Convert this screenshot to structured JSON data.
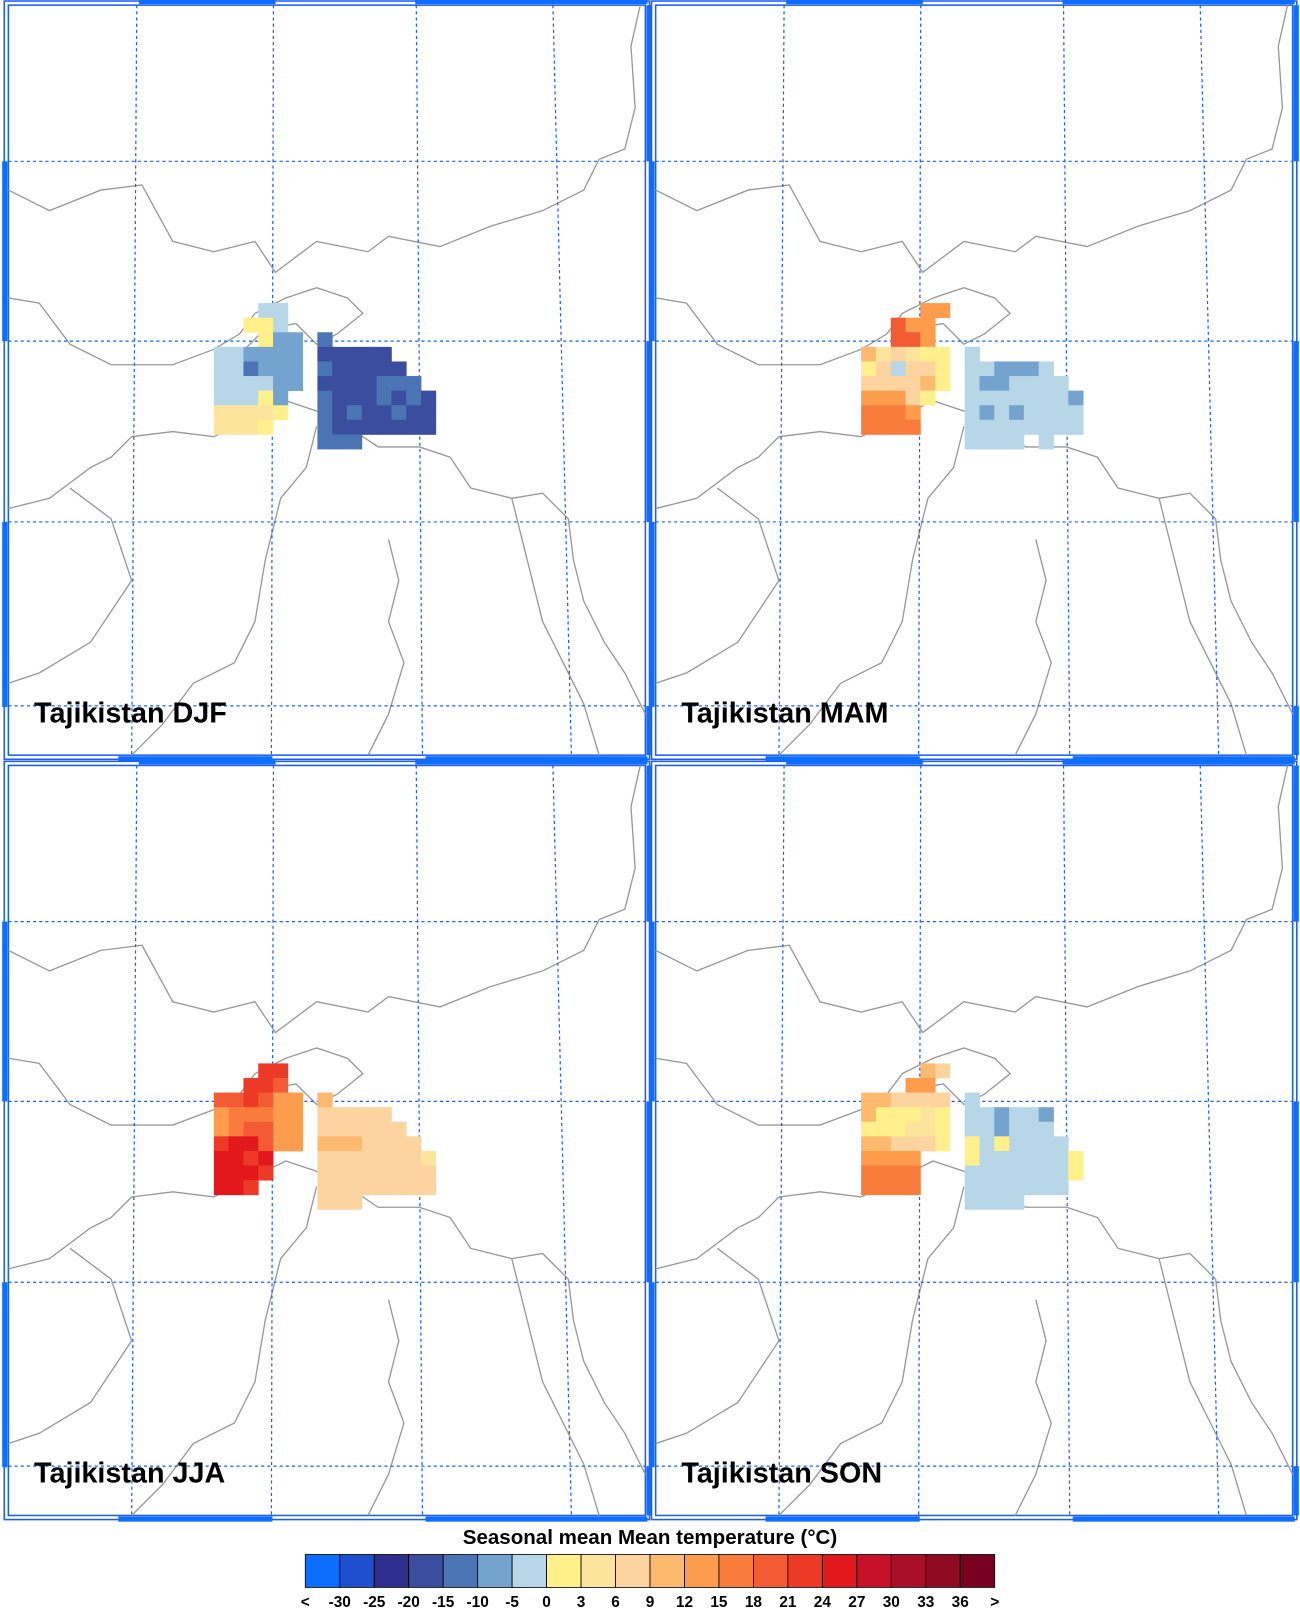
{
  "panels": [
    {
      "title": "Tajikistan DJF",
      "cells": [
        [
          null,
          null,
          null,
          -2.5,
          -2.5,
          null,
          null,
          null,
          null,
          null,
          null,
          null,
          null,
          null,
          null
        ],
        [
          null,
          null,
          1.5,
          1.5,
          -2.5,
          null,
          null,
          null,
          null,
          null,
          null,
          null,
          null,
          null,
          null
        ],
        [
          null,
          null,
          null,
          1.5,
          -7.5,
          -7.5,
          null,
          -12.5,
          null,
          null,
          null,
          null,
          null,
          null,
          null
        ],
        [
          -2.5,
          -2.5,
          -7.5,
          -7.5,
          -7.5,
          -7.5,
          null,
          -17.5,
          -17.5,
          -17.5,
          -17.5,
          -17.5,
          null,
          null,
          null
        ],
        [
          -2.5,
          -2.5,
          -12.5,
          -7.5,
          -7.5,
          -7.5,
          null,
          -12.5,
          -17.5,
          -17.5,
          -17.5,
          -17.5,
          -17.5,
          null,
          null
        ],
        [
          -2.5,
          -2.5,
          -2.5,
          -2.5,
          -7.5,
          -7.5,
          null,
          -17.5,
          -17.5,
          -17.5,
          -17.5,
          -12.5,
          -12.5,
          -12.5,
          null
        ],
        [
          -2.5,
          -2.5,
          -2.5,
          1.5,
          -7.5,
          null,
          null,
          -12.5,
          -17.5,
          -17.5,
          -17.5,
          -12.5,
          -17.5,
          -12.5,
          -17.5
        ],
        [
          4.5,
          4.5,
          4.5,
          4.5,
          1.5,
          null,
          null,
          -12.5,
          -17.5,
          -12.5,
          -17.5,
          -17.5,
          -12.5,
          -17.5,
          -17.5
        ],
        [
          4.5,
          4.5,
          4.5,
          1.5,
          null,
          null,
          null,
          -12.5,
          -17.5,
          -17.5,
          -17.5,
          -17.5,
          -17.5,
          -17.5,
          -17.5
        ],
        [
          null,
          null,
          null,
          null,
          null,
          null,
          null,
          -12.5,
          -12.5,
          -12.5,
          null,
          null,
          null,
          null,
          null
        ]
      ]
    },
    {
      "title": "Tajikistan MAM",
      "cells": [
        [
          null,
          null,
          null,
          null,
          13.5,
          13.5,
          null,
          null,
          null,
          null,
          null,
          null,
          null,
          null,
          null
        ],
        [
          null,
          null,
          19.5,
          13.5,
          13.5,
          null,
          null,
          null,
          null,
          null,
          null,
          null,
          null,
          null,
          null
        ],
        [
          null,
          null,
          19.5,
          19.5,
          13.5,
          null,
          null,
          null,
          null,
          null,
          null,
          null,
          null,
          null,
          null
        ],
        [
          10.5,
          4.5,
          7.5,
          4.5,
          1.5,
          1.5,
          null,
          -2.5,
          null,
          null,
          null,
          null,
          null,
          null,
          null
        ],
        [
          1.5,
          7.5,
          -2.5,
          7.5,
          7.5,
          1.5,
          null,
          -2.5,
          -2.5,
          -7.5,
          -7.5,
          -7.5,
          -2.5,
          null,
          null
        ],
        [
          7.5,
          7.5,
          7.5,
          7.5,
          10.5,
          1.5,
          null,
          -2.5,
          -7.5,
          -7.5,
          -2.5,
          -2.5,
          -2.5,
          -2.5,
          null
        ],
        [
          13.5,
          13.5,
          13.5,
          7.5,
          1.5,
          null,
          null,
          -2.5,
          -2.5,
          -2.5,
          -2.5,
          -2.5,
          -2.5,
          -2.5,
          -7.5
        ],
        [
          16.5,
          16.5,
          16.5,
          13.5,
          null,
          null,
          null,
          -2.5,
          -7.5,
          -2.5,
          -7.5,
          -2.5,
          -2.5,
          -2.5,
          -2.5
        ],
        [
          16.5,
          16.5,
          16.5,
          16.5,
          null,
          null,
          null,
          -2.5,
          -2.5,
          -2.5,
          -2.5,
          -2.5,
          -2.5,
          -2.5,
          -2.5
        ],
        [
          null,
          null,
          null,
          null,
          null,
          null,
          null,
          -2.5,
          -2.5,
          -2.5,
          -2.5,
          null,
          -2.5,
          null,
          null
        ]
      ]
    },
    {
      "title": "Tajikistan JJA",
      "cells": [
        [
          null,
          null,
          null,
          22.5,
          22.5,
          null,
          null,
          null,
          null,
          null,
          null,
          null,
          null,
          null,
          null
        ],
        [
          null,
          null,
          22.5,
          22.5,
          19.5,
          null,
          null,
          null,
          null,
          null,
          null,
          null,
          null,
          null,
          null
        ],
        [
          19.5,
          19.5,
          22.5,
          19.5,
          13.5,
          13.5,
          null,
          10.5,
          null,
          null,
          null,
          null,
          null,
          null,
          null
        ],
        [
          13.5,
          16.5,
          16.5,
          16.5,
          13.5,
          13.5,
          null,
          7.5,
          7.5,
          7.5,
          7.5,
          7.5,
          null,
          null,
          null
        ],
        [
          13.5,
          16.5,
          19.5,
          19.5,
          13.5,
          13.5,
          null,
          7.5,
          7.5,
          7.5,
          7.5,
          7.5,
          7.5,
          null,
          null
        ],
        [
          22.5,
          25.5,
          25.5,
          19.5,
          13.5,
          13.5,
          null,
          10.5,
          10.5,
          10.5,
          7.5,
          7.5,
          7.5,
          7.5,
          null
        ],
        [
          25.5,
          25.5,
          22.5,
          25.5,
          null,
          null,
          null,
          7.5,
          7.5,
          7.5,
          7.5,
          7.5,
          7.5,
          7.5,
          4.5
        ],
        [
          25.5,
          25.5,
          25.5,
          22.5,
          null,
          null,
          null,
          7.5,
          7.5,
          7.5,
          7.5,
          7.5,
          7.5,
          7.5,
          7.5
        ],
        [
          25.5,
          25.5,
          22.5,
          null,
          null,
          null,
          null,
          7.5,
          7.5,
          7.5,
          7.5,
          7.5,
          7.5,
          7.5,
          7.5
        ],
        [
          null,
          null,
          null,
          null,
          null,
          null,
          null,
          7.5,
          7.5,
          7.5,
          null,
          null,
          null,
          null,
          null
        ]
      ]
    },
    {
      "title": "Tajikistan SON",
      "cells": [
        [
          null,
          null,
          null,
          null,
          10.5,
          7.5,
          null,
          null,
          null,
          null,
          null,
          null,
          null,
          null,
          null
        ],
        [
          null,
          null,
          null,
          13.5,
          13.5,
          null,
          null,
          null,
          null,
          null,
          null,
          null,
          null,
          null,
          null
        ],
        [
          10.5,
          10.5,
          7.5,
          7.5,
          7.5,
          7.5,
          null,
          -2.5,
          null,
          null,
          null,
          null,
          null,
          null,
          null
        ],
        [
          10.5,
          1.5,
          1.5,
          1.5,
          4.5,
          1.5,
          null,
          -2.5,
          -2.5,
          -7.5,
          -2.5,
          -2.5,
          -7.5,
          null,
          null
        ],
        [
          1.5,
          1.5,
          1.5,
          4.5,
          4.5,
          1.5,
          null,
          -2.5,
          -2.5,
          -7.5,
          -2.5,
          -2.5,
          -2.5,
          null,
          null
        ],
        [
          10.5,
          10.5,
          7.5,
          7.5,
          7.5,
          1.5,
          null,
          1.5,
          -2.5,
          1.5,
          -2.5,
          -2.5,
          -2.5,
          -2.5,
          null
        ],
        [
          13.5,
          13.5,
          13.5,
          13.5,
          null,
          null,
          null,
          1.5,
          -2.5,
          -2.5,
          -2.5,
          -2.5,
          -2.5,
          -2.5,
          1.5
        ],
        [
          16.5,
          16.5,
          16.5,
          16.5,
          null,
          null,
          null,
          -2.5,
          -2.5,
          -2.5,
          -2.5,
          -2.5,
          -2.5,
          -2.5,
          1.5
        ],
        [
          16.5,
          16.5,
          16.5,
          16.5,
          null,
          null,
          null,
          -2.5,
          -2.5,
          -2.5,
          -2.5,
          -2.5,
          -2.5,
          -2.5,
          null
        ],
        [
          null,
          null,
          null,
          null,
          null,
          null,
          null,
          -2.5,
          -2.5,
          -2.5,
          -2.5,
          null,
          null,
          null,
          null
        ]
      ]
    }
  ],
  "colorbar": {
    "title": "Seasonal mean Mean temperature (°C)",
    "below_label": "<",
    "above_label": ">",
    "levels": [
      -30,
      -25,
      -20,
      -15,
      -10,
      -5,
      0,
      3,
      6,
      9,
      12,
      15,
      18,
      21,
      24,
      27,
      30,
      33,
      36
    ],
    "colors": [
      "#0d6efd",
      "#1f4fcf",
      "#2e2e8e",
      "#3b4d9f",
      "#4a74b4",
      "#74a3cf",
      "#b7d7e8",
      "#fff08c",
      "#fde49c",
      "#fdd4a0",
      "#fdb96e",
      "#fc9c4c",
      "#f97c3c",
      "#f25b34",
      "#ec3a26",
      "#e2181c",
      "#c8102a",
      "#a80e28",
      "#900b22",
      "#780020"
    ]
  }
}
